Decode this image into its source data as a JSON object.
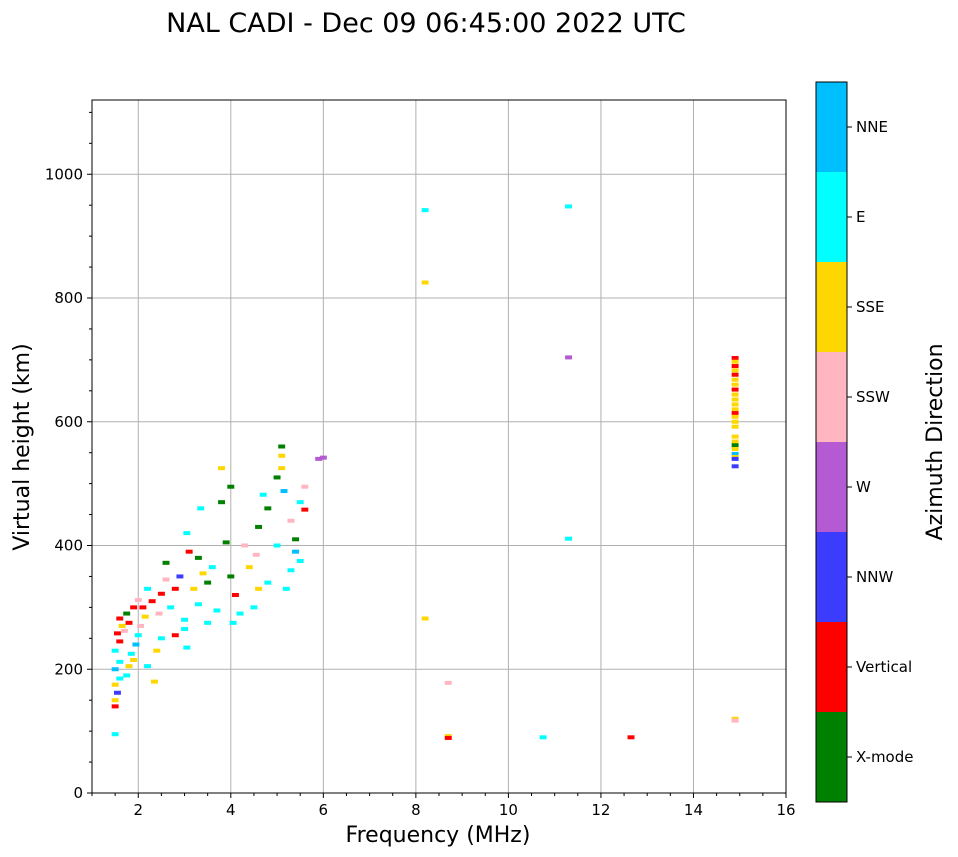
{
  "chart_data": {
    "type": "scatter",
    "title": "NAL CADI - Dec 09 06:45:00 2022 UTC",
    "xlabel": "Frequency (MHz)",
    "ylabel": "Virtual height (km)",
    "xlim": [
      1,
      16
    ],
    "ylim": [
      0,
      1120
    ],
    "xticks": [
      2,
      4,
      6,
      8,
      10,
      12,
      14,
      16
    ],
    "yticks": [
      0,
      200,
      400,
      600,
      800,
      1000
    ],
    "grid": true,
    "colorbar": {
      "label": "Azimuth Direction",
      "categories": [
        {
          "name": "X-mode",
          "color": "#008000"
        },
        {
          "name": "Vertical",
          "color": "#ff0000"
        },
        {
          "name": "NNW",
          "color": "#3c3cff"
        },
        {
          "name": "W",
          "color": "#b45ad2"
        },
        {
          "name": "SSW",
          "color": "#ffb6c1"
        },
        {
          "name": "SSE",
          "color": "#ffd700"
        },
        {
          "name": "E",
          "color": "#00ffff"
        },
        {
          "name": "NNE",
          "color": "#00bfff"
        }
      ]
    },
    "points": [
      {
        "x": 8.2,
        "y": 942,
        "c": "E"
      },
      {
        "x": 11.3,
        "y": 948,
        "c": "E"
      },
      {
        "x": 8.2,
        "y": 825,
        "c": "SSE"
      },
      {
        "x": 11.3,
        "y": 704,
        "c": "W"
      },
      {
        "x": 6.0,
        "y": 542,
        "c": "W"
      },
      {
        "x": 8.2,
        "y": 282,
        "c": "SSE"
      },
      {
        "x": 8.7,
        "y": 178,
        "c": "SSW"
      },
      {
        "x": 8.7,
        "y": 92,
        "c": "SSE"
      },
      {
        "x": 8.7,
        "y": 89,
        "c": "Vertical"
      },
      {
        "x": 11.3,
        "y": 411,
        "c": "E"
      },
      {
        "x": 10.75,
        "y": 90,
        "c": "E"
      },
      {
        "x": 12.65,
        "y": 90,
        "c": "Vertical"
      },
      {
        "x": 14.9,
        "y": 120,
        "c": "SSE"
      },
      {
        "x": 14.9,
        "y": 117,
        "c": "SSW"
      },
      {
        "x": 14.9,
        "y": 703,
        "c": "Vertical"
      },
      {
        "x": 14.9,
        "y": 697,
        "c": "SSE"
      },
      {
        "x": 14.9,
        "y": 690,
        "c": "Vertical"
      },
      {
        "x": 14.9,
        "y": 683,
        "c": "SSE"
      },
      {
        "x": 14.9,
        "y": 676,
        "c": "Vertical"
      },
      {
        "x": 14.9,
        "y": 668,
        "c": "SSE"
      },
      {
        "x": 14.9,
        "y": 660,
        "c": "SSE"
      },
      {
        "x": 14.9,
        "y": 652,
        "c": "Vertical"
      },
      {
        "x": 14.9,
        "y": 644,
        "c": "SSE"
      },
      {
        "x": 14.9,
        "y": 636,
        "c": "SSE"
      },
      {
        "x": 14.9,
        "y": 628,
        "c": "SSE"
      },
      {
        "x": 14.9,
        "y": 620,
        "c": "SSE"
      },
      {
        "x": 14.9,
        "y": 614,
        "c": "Vertical"
      },
      {
        "x": 14.9,
        "y": 608,
        "c": "SSE"
      },
      {
        "x": 14.9,
        "y": 600,
        "c": "SSE"
      },
      {
        "x": 14.9,
        "y": 592,
        "c": "SSE"
      },
      {
        "x": 14.9,
        "y": 576,
        "c": "SSE"
      },
      {
        "x": 14.9,
        "y": 568,
        "c": "SSE"
      },
      {
        "x": 14.9,
        "y": 562,
        "c": "X-mode"
      },
      {
        "x": 14.9,
        "y": 556,
        "c": "SSE"
      },
      {
        "x": 14.9,
        "y": 548,
        "c": "NNE"
      },
      {
        "x": 14.9,
        "y": 543,
        "c": "SSE"
      },
      {
        "x": 14.9,
        "y": 540,
        "c": "NNW"
      },
      {
        "x": 14.9,
        "y": 528,
        "c": "NNW"
      },
      {
        "x": 1.5,
        "y": 95,
        "c": "E"
      },
      {
        "x": 1.5,
        "y": 140,
        "c": "Vertical"
      },
      {
        "x": 1.5,
        "y": 150,
        "c": "SSE"
      },
      {
        "x": 1.55,
        "y": 162,
        "c": "NNW"
      },
      {
        "x": 1.5,
        "y": 175,
        "c": "SSE"
      },
      {
        "x": 1.6,
        "y": 185,
        "c": "E"
      },
      {
        "x": 1.5,
        "y": 200,
        "c": "NNE"
      },
      {
        "x": 1.6,
        "y": 212,
        "c": "E"
      },
      {
        "x": 1.5,
        "y": 230,
        "c": "E"
      },
      {
        "x": 1.6,
        "y": 245,
        "c": "Vertical"
      },
      {
        "x": 1.55,
        "y": 258,
        "c": "Vertical"
      },
      {
        "x": 1.65,
        "y": 270,
        "c": "SSE"
      },
      {
        "x": 1.6,
        "y": 282,
        "c": "Vertical"
      },
      {
        "x": 1.75,
        "y": 290,
        "c": "X-mode"
      },
      {
        "x": 1.8,
        "y": 275,
        "c": "Vertical"
      },
      {
        "x": 1.7,
        "y": 262,
        "c": "SSW"
      },
      {
        "x": 1.75,
        "y": 190,
        "c": "E"
      },
      {
        "x": 1.8,
        "y": 205,
        "c": "SSE"
      },
      {
        "x": 1.9,
        "y": 215,
        "c": "SSE"
      },
      {
        "x": 1.85,
        "y": 225,
        "c": "E"
      },
      {
        "x": 1.95,
        "y": 240,
        "c": "NNE"
      },
      {
        "x": 2.0,
        "y": 255,
        "c": "E"
      },
      {
        "x": 1.9,
        "y": 300,
        "c": "Vertical"
      },
      {
        "x": 2.0,
        "y": 312,
        "c": "SSW"
      },
      {
        "x": 2.1,
        "y": 300,
        "c": "Vertical"
      },
      {
        "x": 2.15,
        "y": 285,
        "c": "SSE"
      },
      {
        "x": 2.05,
        "y": 270,
        "c": "SSW"
      },
      {
        "x": 2.2,
        "y": 330,
        "c": "E"
      },
      {
        "x": 2.3,
        "y": 310,
        "c": "Vertical"
      },
      {
        "x": 2.2,
        "y": 205,
        "c": "E"
      },
      {
        "x": 2.35,
        "y": 180,
        "c": "SSE"
      },
      {
        "x": 2.4,
        "y": 230,
        "c": "SSE"
      },
      {
        "x": 2.5,
        "y": 250,
        "c": "E"
      },
      {
        "x": 2.45,
        "y": 290,
        "c": "SSW"
      },
      {
        "x": 2.5,
        "y": 322,
        "c": "Vertical"
      },
      {
        "x": 2.6,
        "y": 345,
        "c": "SSW"
      },
      {
        "x": 2.6,
        "y": 372,
        "c": "X-mode"
      },
      {
        "x": 2.7,
        "y": 300,
        "c": "E"
      },
      {
        "x": 2.8,
        "y": 330,
        "c": "Vertical"
      },
      {
        "x": 2.9,
        "y": 350,
        "c": "NNW"
      },
      {
        "x": 2.8,
        "y": 255,
        "c": "Vertical"
      },
      {
        "x": 3.0,
        "y": 280,
        "c": "E"
      },
      {
        "x": 3.05,
        "y": 235,
        "c": "E"
      },
      {
        "x": 3.0,
        "y": 265,
        "c": "E"
      },
      {
        "x": 3.1,
        "y": 390,
        "c": "Vertical"
      },
      {
        "x": 3.05,
        "y": 420,
        "c": "E"
      },
      {
        "x": 3.2,
        "y": 330,
        "c": "SSE"
      },
      {
        "x": 3.3,
        "y": 380,
        "c": "X-mode"
      },
      {
        "x": 3.35,
        "y": 460,
        "c": "E"
      },
      {
        "x": 3.4,
        "y": 355,
        "c": "SSE"
      },
      {
        "x": 3.3,
        "y": 305,
        "c": "E"
      },
      {
        "x": 3.5,
        "y": 340,
        "c": "X-mode"
      },
      {
        "x": 3.6,
        "y": 365,
        "c": "E"
      },
      {
        "x": 3.5,
        "y": 275,
        "c": "E"
      },
      {
        "x": 3.7,
        "y": 295,
        "c": "E"
      },
      {
        "x": 3.8,
        "y": 470,
        "c": "X-mode"
      },
      {
        "x": 3.8,
        "y": 525,
        "c": "SSE"
      },
      {
        "x": 3.9,
        "y": 405,
        "c": "X-mode"
      },
      {
        "x": 4.0,
        "y": 495,
        "c": "X-mode"
      },
      {
        "x": 4.0,
        "y": 350,
        "c": "X-mode"
      },
      {
        "x": 4.1,
        "y": 320,
        "c": "Vertical"
      },
      {
        "x": 4.05,
        "y": 275,
        "c": "E"
      },
      {
        "x": 4.2,
        "y": 290,
        "c": "E"
      },
      {
        "x": 4.4,
        "y": 365,
        "c": "SSE"
      },
      {
        "x": 4.3,
        "y": 400,
        "c": "SSW"
      },
      {
        "x": 4.5,
        "y": 300,
        "c": "E"
      },
      {
        "x": 4.6,
        "y": 330,
        "c": "SSE"
      },
      {
        "x": 4.55,
        "y": 385,
        "c": "SSW"
      },
      {
        "x": 4.6,
        "y": 430,
        "c": "X-mode"
      },
      {
        "x": 4.8,
        "y": 460,
        "c": "X-mode"
      },
      {
        "x": 4.7,
        "y": 482,
        "c": "E"
      },
      {
        "x": 4.8,
        "y": 340,
        "c": "E"
      },
      {
        "x": 5.0,
        "y": 400,
        "c": "E"
      },
      {
        "x": 5.0,
        "y": 510,
        "c": "X-mode"
      },
      {
        "x": 5.1,
        "y": 545,
        "c": "SSE"
      },
      {
        "x": 5.1,
        "y": 560,
        "c": "X-mode"
      },
      {
        "x": 5.15,
        "y": 488,
        "c": "NNE"
      },
      {
        "x": 5.1,
        "y": 525,
        "c": "SSE"
      },
      {
        "x": 5.2,
        "y": 330,
        "c": "E"
      },
      {
        "x": 5.3,
        "y": 360,
        "c": "E"
      },
      {
        "x": 5.3,
        "y": 440,
        "c": "SSW"
      },
      {
        "x": 5.4,
        "y": 390,
        "c": "NNE"
      },
      {
        "x": 5.4,
        "y": 410,
        "c": "X-mode"
      },
      {
        "x": 5.5,
        "y": 470,
        "c": "E"
      },
      {
        "x": 5.6,
        "y": 458,
        "c": "Vertical"
      },
      {
        "x": 5.6,
        "y": 495,
        "c": "SSW"
      },
      {
        "x": 5.5,
        "y": 375,
        "c": "E"
      },
      {
        "x": 5.9,
        "y": 540,
        "c": "W"
      }
    ]
  }
}
